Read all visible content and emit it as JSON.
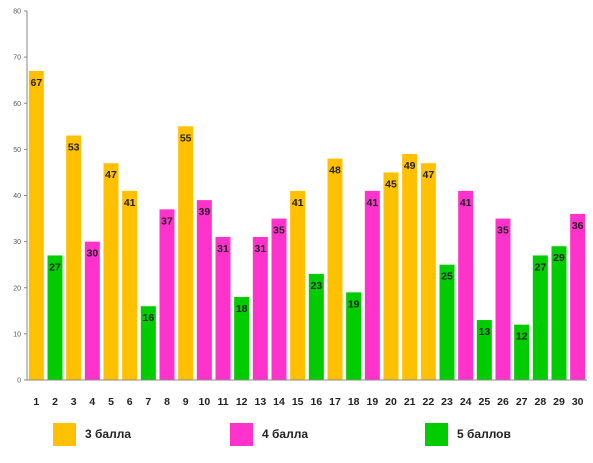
{
  "chart_data": {
    "type": "bar",
    "categories": [
      "1",
      "2",
      "3",
      "4",
      "5",
      "6",
      "7",
      "8",
      "9",
      "10",
      "11",
      "12",
      "13",
      "14",
      "15",
      "16",
      "17",
      "18",
      "19",
      "20",
      "21",
      "22",
      "23",
      "24",
      "25",
      "26",
      "27",
      "28",
      "29",
      "30"
    ],
    "values": [
      67,
      27,
      53,
      30,
      47,
      41,
      16,
      37,
      55,
      39,
      31,
      18,
      31,
      35,
      41,
      23,
      48,
      19,
      41,
      45,
      49,
      47,
      25,
      41,
      13,
      35,
      12,
      27,
      29,
      36
    ],
    "value_series": [
      0,
      2,
      0,
      1,
      0,
      0,
      2,
      1,
      0,
      1,
      1,
      2,
      1,
      1,
      0,
      2,
      0,
      2,
      1,
      0,
      0,
      0,
      2,
      1,
      2,
      1,
      2,
      2,
      2,
      1
    ],
    "series": [
      {
        "name": "3 балла",
        "color": "#FFC000"
      },
      {
        "name": "4 балла",
        "color": "#FF33CC"
      },
      {
        "name": "5 баллов",
        "color": "#00CC00"
      }
    ],
    "ylim": [
      0,
      80
    ],
    "yticks": [
      "0",
      "10",
      "20",
      "30",
      "40",
      "50",
      "60",
      "70",
      "80"
    ],
    "grid": false,
    "legend_position": "bottom"
  }
}
